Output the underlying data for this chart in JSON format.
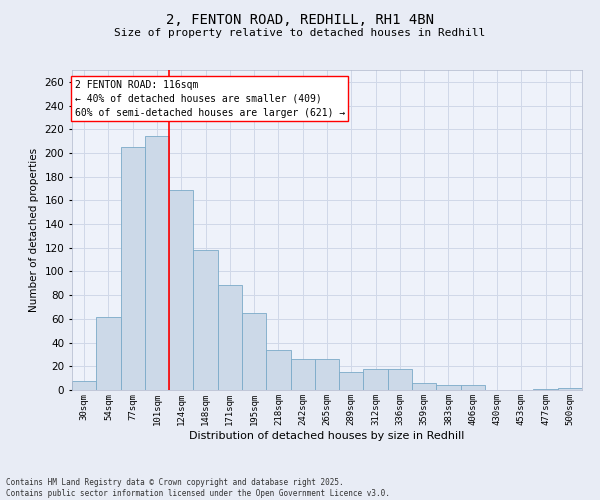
{
  "title_line1": "2, FENTON ROAD, REDHILL, RH1 4BN",
  "title_line2": "Size of property relative to detached houses in Redhill",
  "xlabel": "Distribution of detached houses by size in Redhill",
  "ylabel": "Number of detached properties",
  "footnote": "Contains HM Land Registry data © Crown copyright and database right 2025.\nContains public sector information licensed under the Open Government Licence v3.0.",
  "bar_labels": [
    "30sqm",
    "54sqm",
    "77sqm",
    "101sqm",
    "124sqm",
    "148sqm",
    "171sqm",
    "195sqm",
    "218sqm",
    "242sqm",
    "265sqm",
    "289sqm",
    "312sqm",
    "336sqm",
    "359sqm",
    "383sqm",
    "406sqm",
    "430sqm",
    "453sqm",
    "477sqm",
    "500sqm"
  ],
  "bar_values": [
    8,
    62,
    205,
    214,
    169,
    118,
    89,
    65,
    34,
    26,
    26,
    15,
    18,
    18,
    6,
    4,
    4,
    0,
    0,
    1,
    2
  ],
  "bar_color": "#ccd9e8",
  "bar_edgecolor": "#7aaac8",
  "vline_x": 3.5,
  "vline_color": "red",
  "annotation_text": "2 FENTON ROAD: 116sqm\n← 40% of detached houses are smaller (409)\n60% of semi-detached houses are larger (621) →",
  "annotation_box_facecolor": "white",
  "annotation_box_edgecolor": "red",
  "ylim": [
    0,
    270
  ],
  "yticks": [
    0,
    20,
    40,
    60,
    80,
    100,
    120,
    140,
    160,
    180,
    200,
    220,
    240,
    260
  ],
  "bg_color": "#e8ecf5",
  "plot_bg_color": "#eef2fa",
  "grid_color": "#d0d8e8",
  "title_fontsize": 10,
  "subtitle_fontsize": 8,
  "ylabel_fontsize": 7.5,
  "xlabel_fontsize": 8,
  "ytick_fontsize": 7.5,
  "xtick_fontsize": 6.5,
  "annot_fontsize": 7,
  "footnote_fontsize": 5.5
}
